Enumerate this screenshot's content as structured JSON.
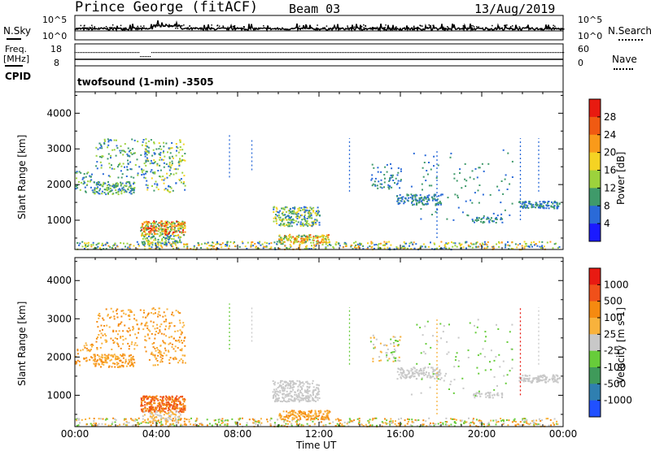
{
  "header": {
    "title": "Prince George (fitACF)",
    "beam": "Beam 03",
    "date": "13/Aug/2019"
  },
  "status_panels": {
    "nsky_label": "N.Sky",
    "nsky_ticks": [
      "10^5",
      "10^0"
    ],
    "nsearch_label": "N.Search",
    "nsearch_ticks": [
      "10^5",
      "10^0"
    ],
    "freq_label": "Freq.",
    "freq_unit": "[MHz]",
    "freq_ticks": [
      "18",
      "8"
    ],
    "nave_label": "Nave",
    "nave_ticks": [
      "60",
      "0"
    ],
    "cpid_label": "CPID",
    "cpid_text": "twofsound (1-min) -3505"
  },
  "chart_data": [
    {
      "type": "scatter",
      "panel": "power",
      "xlabel": "",
      "ylabel": "Slant Range [km]",
      "xlim": [
        0,
        24
      ],
      "ylim": [
        180,
        4600
      ],
      "y_ticks": [
        1000,
        2000,
        3000,
        4000
      ],
      "colorbar": {
        "label": "Power [dB]",
        "ticks": [
          "4",
          "8",
          "12",
          "16",
          "20",
          "24",
          "28"
        ],
        "range": [
          0,
          30
        ],
        "colors": [
          "#1a1aff",
          "#2a6ad8",
          "#3f9a6a",
          "#9cd23c",
          "#f5d323",
          "#f99a1a",
          "#f05a12",
          "#e81a10"
        ]
      },
      "scatter_regions": [
        {
          "t": [
            0.0,
            23.8
          ],
          "r": [
            200,
            420
          ],
          "n": 520,
          "c": [
            1,
            5
          ]
        },
        {
          "t": [
            0.0,
            0.9
          ],
          "r": [
            1800,
            2400
          ],
          "n": 40,
          "c": [
            1,
            3
          ]
        },
        {
          "t": [
            0.9,
            2.9
          ],
          "r": [
            1750,
            2100
          ],
          "n": 140,
          "c": [
            1,
            3
          ]
        },
        {
          "t": [
            1.0,
            3.6
          ],
          "r": [
            2200,
            3300
          ],
          "n": 130,
          "c": [
            1,
            3
          ]
        },
        {
          "t": [
            3.4,
            5.4
          ],
          "r": [
            1800,
            3300
          ],
          "n": 170,
          "c": [
            1,
            4
          ]
        },
        {
          "t": [
            3.2,
            5.4
          ],
          "r": [
            580,
            1000
          ],
          "n": 260,
          "c": [
            2,
            7
          ]
        },
        {
          "t": [
            3.3,
            5.2
          ],
          "r": [
            300,
            600
          ],
          "n": 90,
          "c": [
            1,
            4
          ]
        },
        {
          "t": [
            9.7,
            12.0
          ],
          "r": [
            850,
            1400
          ],
          "n": 230,
          "c": [
            1,
            4
          ]
        },
        {
          "t": [
            10.0,
            12.5
          ],
          "r": [
            380,
            620
          ],
          "n": 150,
          "c": [
            2,
            6
          ]
        },
        {
          "t": [
            14.5,
            16.0
          ],
          "r": [
            1900,
            2600
          ],
          "n": 60,
          "c": [
            1,
            2
          ]
        },
        {
          "t": [
            15.8,
            18.0
          ],
          "r": [
            1450,
            1750
          ],
          "n": 120,
          "c": [
            1,
            2
          ]
        },
        {
          "t": [
            16.5,
            21.5
          ],
          "r": [
            1000,
            3000
          ],
          "n": 90,
          "c": [
            1,
            2
          ]
        },
        {
          "t": [
            19.5,
            21.0
          ],
          "r": [
            950,
            1100
          ],
          "n": 40,
          "c": [
            1,
            2
          ]
        },
        {
          "t": [
            21.8,
            23.8
          ],
          "r": [
            1350,
            1550
          ],
          "n": 110,
          "c": [
            1,
            2
          ]
        }
      ],
      "streaks": [
        {
          "t": 7.6,
          "r": [
            2200,
            3400
          ],
          "c": 1
        },
        {
          "t": 8.7,
          "r": [
            2400,
            3300
          ],
          "c": 1
        },
        {
          "t": 13.5,
          "r": [
            1800,
            3300
          ],
          "c": 1
        },
        {
          "t": 17.8,
          "r": [
            500,
            3000
          ],
          "c": 1
        },
        {
          "t": 21.9,
          "r": [
            1000,
            3300
          ],
          "c": 1
        },
        {
          "t": 22.8,
          "r": [
            1800,
            3300
          ],
          "c": 1
        }
      ]
    },
    {
      "type": "scatter",
      "panel": "velocity",
      "xlabel": "Time UT",
      "ylabel": "Slant Range [km]",
      "xlim": [
        0,
        24
      ],
      "ylim": [
        180,
        4600
      ],
      "x_ticks": [
        "00:00",
        "04:00",
        "08:00",
        "12:00",
        "16:00",
        "20:00",
        "00:00"
      ],
      "y_ticks": [
        1000,
        2000,
        3000,
        4000
      ],
      "colorbar": {
        "label": "Velocity [m s-1]",
        "ticks": [
          "1000",
          "500",
          "100",
          "25",
          "-25",
          "-100",
          "-500",
          "-1000"
        ],
        "colors": [
          "#2050ff",
          "#2f7fb0",
          "#3f9a5a",
          "#67cc3a",
          "#c8c8c8",
          "#f8b23c",
          "#f58a10",
          "#f0501a",
          "#e81a12"
        ]
      },
      "scatter_regions": [
        {
          "t": [
            0.0,
            23.8
          ],
          "r": [
            200,
            420
          ],
          "n": 520,
          "c": [
            3,
            6
          ]
        },
        {
          "t": [
            0.0,
            0.9
          ],
          "r": [
            1800,
            2400
          ],
          "n": 40,
          "c": [
            5,
            6
          ]
        },
        {
          "t": [
            0.9,
            2.9
          ],
          "r": [
            1750,
            2100
          ],
          "n": 140,
          "c": [
            5,
            6
          ]
        },
        {
          "t": [
            1.0,
            3.6
          ],
          "r": [
            2200,
            3300
          ],
          "n": 130,
          "c": [
            5,
            6
          ]
        },
        {
          "t": [
            3.4,
            5.4
          ],
          "r": [
            1800,
            3300
          ],
          "n": 170,
          "c": [
            5,
            6
          ]
        },
        {
          "t": [
            3.2,
            5.4
          ],
          "r": [
            580,
            1000
          ],
          "n": 300,
          "c": [
            6,
            7
          ]
        },
        {
          "t": [
            3.3,
            5.2
          ],
          "r": [
            300,
            600
          ],
          "n": 90,
          "c": [
            4,
            5
          ]
        },
        {
          "t": [
            9.7,
            12.0
          ],
          "r": [
            850,
            1400
          ],
          "n": 260,
          "c": [
            4,
            4
          ]
        },
        {
          "t": [
            10.0,
            12.5
          ],
          "r": [
            380,
            620
          ],
          "n": 150,
          "c": [
            5,
            6
          ]
        },
        {
          "t": [
            14.5,
            16.0
          ],
          "r": [
            1900,
            2600
          ],
          "n": 60,
          "c": [
            3,
            5
          ]
        },
        {
          "t": [
            15.8,
            18.0
          ],
          "r": [
            1450,
            1750
          ],
          "n": 120,
          "c": [
            4,
            4
          ]
        },
        {
          "t": [
            16.5,
            21.5
          ],
          "r": [
            1000,
            3000
          ],
          "n": 90,
          "c": [
            3,
            4
          ]
        },
        {
          "t": [
            19.5,
            21.0
          ],
          "r": [
            950,
            1100
          ],
          "n": 40,
          "c": [
            4,
            4
          ]
        },
        {
          "t": [
            21.8,
            23.8
          ],
          "r": [
            1350,
            1550
          ],
          "n": 110,
          "c": [
            4,
            4
          ]
        }
      ],
      "streaks": [
        {
          "t": 7.6,
          "r": [
            2200,
            3400
          ],
          "c": 3
        },
        {
          "t": 8.7,
          "r": [
            2400,
            3300
          ],
          "c": 4
        },
        {
          "t": 13.5,
          "r": [
            1800,
            3300
          ],
          "c": 3
        },
        {
          "t": 17.8,
          "r": [
            500,
            3000
          ],
          "c": 5
        },
        {
          "t": 21.9,
          "r": [
            1000,
            3300
          ],
          "c": 8
        },
        {
          "t": 22.8,
          "r": [
            1800,
            3300
          ],
          "c": 4
        }
      ]
    }
  ]
}
